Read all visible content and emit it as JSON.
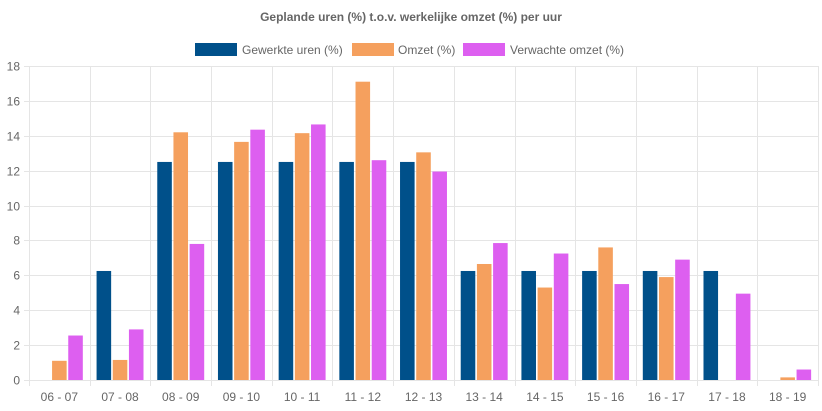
{
  "chart_data": {
    "type": "bar",
    "title": "Geplande uren (%) t.o.v. werkelijke omzet (%) per uur",
    "categories": [
      "06 - 07",
      "07 - 08",
      "08 - 09",
      "09 - 10",
      "10 - 11",
      "11 - 12",
      "12 - 13",
      "13 - 14",
      "14 - 15",
      "15 - 16",
      "16 - 17",
      "17 - 18",
      "18 - 19"
    ],
    "series": [
      {
        "name": "Gewerkte uren (%)",
        "color": "#00508a",
        "values": [
          0,
          6.25,
          12.5,
          12.5,
          12.5,
          12.5,
          12.5,
          6.25,
          6.25,
          6.25,
          6.25,
          6.25,
          0
        ]
      },
      {
        "name": "Omzet (%)",
        "color": "#f5a05e",
        "values": [
          1.1,
          1.15,
          14.2,
          13.65,
          14.15,
          17.1,
          13.05,
          6.65,
          5.3,
          7.6,
          5.9,
          0,
          0.15
        ]
      },
      {
        "name": "Verwachte omzet (%)",
        "color": "#dd5ff0",
        "values": [
          2.55,
          2.9,
          7.8,
          14.35,
          14.65,
          12.6,
          11.95,
          7.85,
          7.25,
          5.5,
          6.9,
          4.95,
          0.6
        ]
      }
    ],
    "yticks": [
      "0",
      "2",
      "4",
      "6",
      "8",
      "10",
      "12",
      "14",
      "16",
      "18"
    ],
    "ylim": [
      0,
      18
    ],
    "grid": true,
    "legend_position": "top"
  }
}
